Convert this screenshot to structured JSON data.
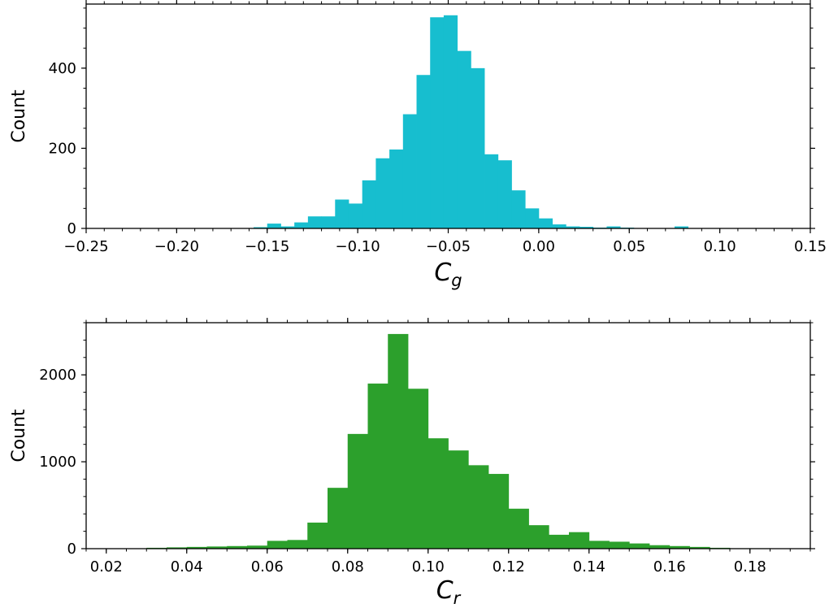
{
  "chart_data": [
    {
      "type": "bar",
      "subtype": "histogram",
      "color": "#17becf",
      "xlabel": {
        "main": "C",
        "sub": "g"
      },
      "ylabel": "Count",
      "xlim": [
        -0.25,
        0.15
      ],
      "ylim": [
        0,
        560
      ],
      "xticks": [
        -0.25,
        -0.2,
        -0.15,
        -0.1,
        -0.05,
        0.0,
        0.05,
        0.1,
        0.15
      ],
      "xtick_labels": [
        "−0.25",
        "−0.20",
        "−0.15",
        "−0.10",
        "−0.05",
        "0.00",
        "0.05",
        "0.10",
        "0.15"
      ],
      "yticks": [
        0,
        200,
        400
      ],
      "ytick_labels": [
        "0",
        "200",
        "400"
      ],
      "bin_width": 0.0075,
      "bin_left": [
        -0.1575,
        -0.15,
        -0.1425,
        -0.135,
        -0.1275,
        -0.12,
        -0.1125,
        -0.105,
        -0.0975,
        -0.09,
        -0.0825,
        -0.075,
        -0.0675,
        -0.06,
        -0.0525,
        -0.045,
        -0.0375,
        -0.03,
        -0.0225,
        -0.015,
        -0.0075,
        0.0,
        0.0075,
        0.015,
        0.0225,
        0.03,
        0.0375,
        0.045,
        0.075
      ],
      "counts": [
        3,
        12,
        5,
        15,
        30,
        30,
        72,
        62,
        120,
        175,
        197,
        285,
        383,
        527,
        532,
        443,
        400,
        185,
        170,
        95,
        50,
        25,
        10,
        5,
        4,
        2,
        5,
        2,
        5
      ],
      "grid": false,
      "legend": "none"
    },
    {
      "type": "bar",
      "subtype": "histogram",
      "color": "#2ca02c",
      "xlabel": {
        "main": "C",
        "sub": "r"
      },
      "ylabel": "Count",
      "xlim": [
        0.015,
        0.195
      ],
      "ylim": [
        0,
        2600
      ],
      "xticks": [
        0.02,
        0.04,
        0.06,
        0.08,
        0.1,
        0.12,
        0.14,
        0.16,
        0.18
      ],
      "xtick_labels": [
        "0.02",
        "0.04",
        "0.06",
        "0.08",
        "0.10",
        "0.12",
        "0.14",
        "0.16",
        "0.18"
      ],
      "yticks": [
        0,
        1000,
        2000
      ],
      "ytick_labels": [
        "0",
        "1000",
        "2000"
      ],
      "bin_width": 0.005,
      "bin_left": [
        0.03,
        0.035,
        0.04,
        0.045,
        0.05,
        0.055,
        0.06,
        0.065,
        0.07,
        0.075,
        0.08,
        0.085,
        0.09,
        0.095,
        0.1,
        0.105,
        0.11,
        0.115,
        0.12,
        0.125,
        0.13,
        0.135,
        0.14,
        0.145,
        0.15,
        0.155,
        0.16,
        0.165,
        0.17,
        0.175,
        0.18,
        0.185
      ],
      "counts": [
        10,
        15,
        20,
        25,
        30,
        35,
        90,
        100,
        300,
        700,
        1320,
        1900,
        2470,
        1840,
        1270,
        1130,
        960,
        860,
        460,
        270,
        160,
        190,
        90,
        80,
        60,
        40,
        30,
        20,
        10,
        5,
        5,
        3
      ],
      "grid": false,
      "legend": "none"
    }
  ]
}
